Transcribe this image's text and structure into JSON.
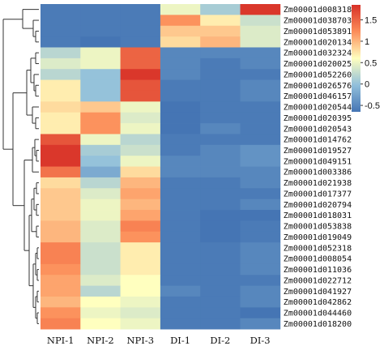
{
  "chart_data": {
    "type": "heatmap",
    "title": "",
    "columns": [
      "NPI-1",
      "NPI-2",
      "NPI-3",
      "DI-1",
      "DI-2",
      "DI-3"
    ],
    "rows": [
      "Zm00001d008318",
      "Zm00001d038703",
      "Zm00001d053891",
      "Zm00001d020134",
      "Zm00001d032324",
      "Zm00001d020025",
      "Zm00001d052260",
      "Zm00001d026576",
      "Zm00001d046157",
      "Zm00001d020544",
      "Zm00001d020395",
      "Zm00001d020543",
      "Zm00001d014762",
      "Zm00001d019527",
      "Zm00001d049151",
      "Zm00001d003386",
      "Zm00001d021938",
      "Zm00001d017377",
      "Zm00001d020794",
      "Zm00001d018031",
      "Zm00001d053838",
      "Zm00001d019049",
      "Zm00001d052318",
      "Zm00001d008054",
      "Zm00001d011036",
      "Zm00001d022712",
      "Zm00001d041927",
      "Zm00001d042862",
      "Zm00001d044460",
      "Zm00001d018200"
    ],
    "values": [
      [
        -0.6,
        -0.6,
        -0.6,
        0.5,
        0.1,
        1.8
      ],
      [
        -0.6,
        -0.6,
        -0.6,
        1.2,
        0.7,
        0.3
      ],
      [
        -0.6,
        -0.6,
        -0.6,
        0.9,
        0.9,
        0.4
      ],
      [
        -0.6,
        -0.7,
        -0.6,
        0.8,
        1.0,
        0.4
      ],
      [
        0.2,
        0.5,
        1.5,
        -0.5,
        -0.5,
        -0.5
      ],
      [
        0.4,
        0.5,
        1.5,
        -0.5,
        -0.6,
        -0.5
      ],
      [
        0.2,
        0.0,
        1.8,
        -0.5,
        -0.6,
        -0.6
      ],
      [
        0.7,
        0.0,
        1.6,
        -0.6,
        -0.6,
        -0.5
      ],
      [
        0.7,
        0.0,
        1.6,
        -0.6,
        -0.6,
        -0.5
      ],
      [
        0.8,
        0.9,
        0.5,
        -0.8,
        -0.6,
        -0.6
      ],
      [
        0.7,
        1.2,
        0.4,
        -0.7,
        -0.6,
        -0.6
      ],
      [
        0.7,
        1.2,
        0.5,
        -0.8,
        -0.5,
        -0.6
      ],
      [
        1.6,
        0.5,
        0.2,
        -0.6,
        -0.6,
        -0.6
      ],
      [
        1.8,
        0.1,
        0.3,
        -0.6,
        -0.5,
        -0.4
      ],
      [
        1.8,
        0.0,
        0.5,
        -0.5,
        -0.5,
        -0.4
      ],
      [
        1.4,
        -0.2,
        0.8,
        -0.5,
        -0.5,
        -0.5
      ],
      [
        0.8,
        0.2,
        1.0,
        -0.6,
        -0.6,
        -0.5
      ],
      [
        0.9,
        0.4,
        1.1,
        -0.6,
        -0.6,
        -0.6
      ],
      [
        0.9,
        0.5,
        1.0,
        -0.6,
        -0.6,
        -0.5
      ],
      [
        0.9,
        0.5,
        1.1,
        -0.6,
        -0.8,
        -0.7
      ],
      [
        1.0,
        0.4,
        1.3,
        -0.6,
        -0.7,
        -0.6
      ],
      [
        1.0,
        0.4,
        1.2,
        -0.6,
        -0.7,
        -0.6
      ],
      [
        1.3,
        0.3,
        0.7,
        -0.6,
        -0.6,
        -0.5
      ],
      [
        1.3,
        0.3,
        0.7,
        -0.6,
        -0.6,
        -0.5
      ],
      [
        1.2,
        0.3,
        0.7,
        -0.6,
        -0.6,
        -0.5
      ],
      [
        1.1,
        0.4,
        0.6,
        -0.6,
        -0.6,
        -0.6
      ],
      [
        1.1,
        0.2,
        0.6,
        -0.5,
        -0.6,
        -0.5
      ],
      [
        1.0,
        0.6,
        0.5,
        -0.6,
        -0.6,
        -0.5
      ],
      [
        1.2,
        0.5,
        0.4,
        -0.6,
        -0.6,
        -0.7
      ],
      [
        1.3,
        0.6,
        0.5,
        -0.6,
        -0.6,
        -0.5
      ]
    ],
    "color_scale": {
      "min": -0.65,
      "max": 1.85,
      "colors": [
        "#4575b4",
        "#91bfdb",
        "#ffffbf",
        "#fc8d59",
        "#d73027"
      ],
      "ticks": [
        1.5,
        1,
        0.5,
        0,
        -0.5
      ],
      "tick_labels": [
        "1.5",
        "1",
        "0.5",
        "0",
        "-0.5"
      ]
    },
    "legend_position": "right",
    "row_dendrogram": "left",
    "grid": false
  }
}
